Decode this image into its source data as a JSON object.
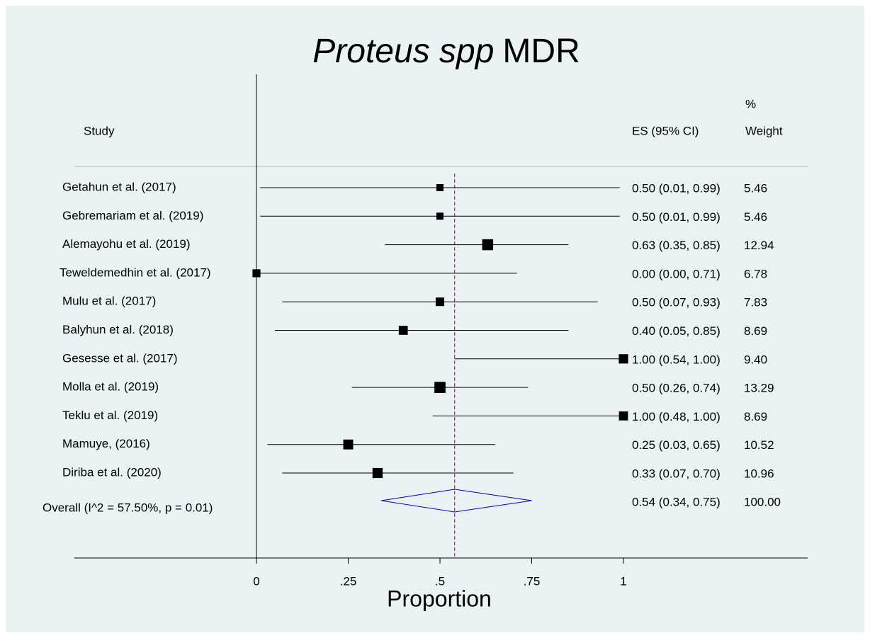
{
  "chart_data": {
    "type": "forest",
    "title_italic": "Proteus spp",
    "title": "MDR",
    "x_label": "Proportion",
    "study_header": "Study",
    "es_header": "ES (95% CI)",
    "weight_header_top": "%",
    "weight_header": "Weight",
    "categories": [
      "Getahun et al. (2017)",
      "Gebremariam et al. (2019)",
      "Alemayohu et al. (2019)",
      "Teweldemedhin et al. (2017)",
      "Mulu et al. (2017)",
      "Balyhun et al. (2018)",
      "Gesesse et al. (2017)",
      "Molla et al. (2019)",
      "Teklu et al. (2019)",
      "Mamuye,  (2016)",
      "Diriba et al. (2020)"
    ],
    "values": [
      0.5,
      0.5,
      0.63,
      0.0,
      0.5,
      0.4,
      1.0,
      0.5,
      1.0,
      0.25,
      0.33
    ],
    "lower": [
      0.01,
      0.01,
      0.35,
      0.0,
      0.07,
      0.05,
      0.54,
      0.26,
      0.48,
      0.03,
      0.07
    ],
    "upper": [
      0.99,
      0.99,
      0.85,
      0.71,
      0.93,
      0.85,
      1.0,
      0.74,
      1.0,
      0.65,
      0.7
    ],
    "value_labels": [
      "0.50 (0.01, 0.99)",
      "0.50 (0.01, 0.99)",
      "0.63 (0.35, 0.85)",
      "0.00 (0.00, 0.71)",
      "0.50 (0.07, 0.93)",
      "0.40 (0.05, 0.85)",
      "1.00 (0.54, 1.00)",
      "0.50 (0.26, 0.74)",
      "1.00 (0.48, 1.00)",
      "0.25 (0.03, 0.65)",
      "0.33 (0.07, 0.70)"
    ],
    "weights": [
      5.46,
      5.46,
      12.94,
      6.78,
      7.83,
      8.69,
      9.4,
      13.29,
      8.69,
      10.52,
      10.96
    ],
    "weight_labels": [
      "5.46",
      "5.46",
      "12.94",
      "6.78",
      "7.83",
      "8.69",
      "9.40",
      "13.29",
      "8.69",
      "10.52",
      "10.96"
    ],
    "overall": {
      "label": "Overall  (I^2 = 57.50%, p = 0.01)",
      "value": 0.54,
      "lower": 0.34,
      "upper": 0.75,
      "value_label": "0.54 (0.34, 0.75)",
      "weight": {
        "value": 100,
        "label": "100.00"
      },
      "color": "#0000cc"
    },
    "reference_line_color": "#cc0000",
    "marker_color": "#000000",
    "xlim": [
      0,
      1
    ],
    "xticks": [
      0,
      {
        "value": 0.25,
        "label": ".25"
      },
      {
        "value": 0.5,
        "label": ".5"
      },
      {
        "value": 0.75,
        "label": ".75"
      },
      1
    ]
  }
}
